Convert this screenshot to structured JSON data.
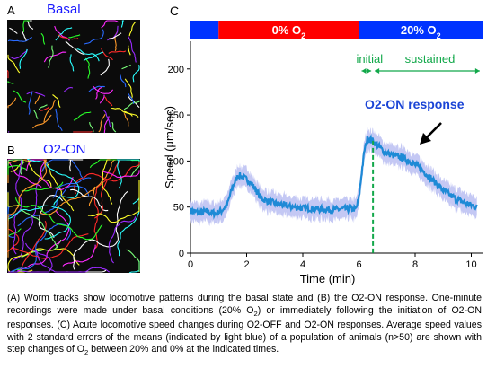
{
  "panel_a": {
    "letter": "A",
    "title": "Basal"
  },
  "panel_b": {
    "letter": "B",
    "title": "O2-ON"
  },
  "panel_c": {
    "letter": "C"
  },
  "chart_data": {
    "type": "line",
    "title": "",
    "xlabel": "Time (min)",
    "ylabel": "Speed (µm/sec)",
    "xlim": [
      0,
      10.4
    ],
    "ylim": [
      0,
      230
    ],
    "xticks": [
      0,
      2,
      4,
      6,
      8,
      10
    ],
    "yticks": [
      0,
      50,
      100,
      150,
      200
    ],
    "series": [
      {
        "x": [
          0,
          0.3,
          0.6,
          0.9,
          1.1,
          1.3,
          1.5,
          1.7,
          1.9,
          2.1,
          2.3,
          2.5,
          2.7,
          3.0,
          3.3,
          3.6,
          4.0,
          4.5,
          5.0,
          5.5,
          5.9,
          6.0,
          6.1,
          6.2,
          6.3,
          6.5,
          6.7,
          6.9,
          7.2,
          7.5,
          7.8,
          8.1,
          8.4,
          8.7,
          9.0,
          9.4,
          9.8,
          10.2
        ],
        "y": [
          46,
          44,
          45,
          43,
          46,
          52,
          72,
          85,
          82,
          78,
          70,
          60,
          57,
          54,
          52,
          50,
          49,
          48,
          47,
          48,
          48,
          60,
          88,
          112,
          124,
          122,
          116,
          110,
          106,
          104,
          100,
          94,
          86,
          77,
          68,
          60,
          54,
          50
        ]
      }
    ],
    "error_band": "2 standard errors of the means",
    "condition_bar": {
      "segments": [
        {
          "label": "",
          "start": 0,
          "end": 1.0,
          "color": "#0033ff"
        },
        {
          "label": "0% O2",
          "start": 1.0,
          "end": 6.0,
          "color": "#ff0000"
        },
        {
          "label": "20% O2",
          "start": 6.0,
          "end": 10.4,
          "color": "#0033ff"
        }
      ]
    },
    "annotations": {
      "initial": "initial",
      "sustained": "sustained",
      "response": "O2-ON response",
      "dashed_line_x": 6.5
    },
    "colors": {
      "line": "#1e8ad6",
      "band": "#c4c8f4",
      "annotation": "#12a84a",
      "response_text": "#1a44d6"
    }
  },
  "caption": {
    "p1": "(A) Worm tracks show locomotive patterns during the basal state and (B) the O2-ON response. One-minute recordings were made under basal conditions (20% O",
    "p1_sub": "2",
    "p2": ") or immediately following the initiation of O2-ON responses. (C) Acute locomotive speed changes during O2-OFF and O2-ON responses. Average speed values with 2 standard errors of the means (indicated by light blue) of a population of animals (n>50) are shown with step changes of O",
    "p2_sub": "2",
    "p3": " between 20% and 0% at the indicated times."
  }
}
